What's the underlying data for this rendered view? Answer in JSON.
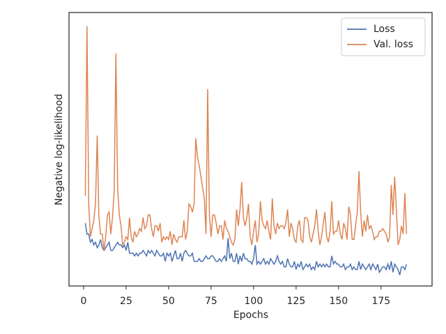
{
  "chart_data": {
    "type": "line",
    "xlabel": "Epochs",
    "ylabel": "Negative log-likelihood",
    "x": [
      1,
      2,
      3,
      4,
      5,
      6,
      7,
      8,
      9,
      10,
      11,
      12,
      13,
      14,
      15,
      16,
      17,
      18,
      19,
      20,
      21,
      22,
      23,
      24,
      25,
      26,
      27,
      28,
      29,
      30,
      31,
      32,
      33,
      34,
      35,
      36,
      37,
      38,
      39,
      40,
      41,
      42,
      43,
      44,
      45,
      46,
      47,
      48,
      49,
      50,
      51,
      52,
      53,
      54,
      55,
      56,
      57,
      58,
      59,
      60,
      61,
      62,
      63,
      64,
      65,
      66,
      67,
      68,
      69,
      70,
      71,
      72,
      73,
      74,
      75,
      76,
      77,
      78,
      79,
      80,
      81,
      82,
      83,
      84,
      85,
      86,
      87,
      88,
      89,
      90,
      91,
      92,
      93,
      94,
      95,
      96,
      97,
      98,
      99,
      100,
      101,
      102,
      103,
      104,
      105,
      106,
      107,
      108,
      109,
      110,
      111,
      112,
      113,
      114,
      115,
      116,
      117,
      118,
      119,
      120,
      121,
      122,
      123,
      124,
      125,
      126,
      127,
      128,
      129,
      130,
      131,
      132,
      133,
      134,
      135,
      136,
      137,
      138,
      139,
      140,
      141,
      142,
      143,
      144,
      145,
      146,
      147,
      148,
      149,
      150,
      151,
      152,
      153,
      154,
      155,
      156,
      157,
      158,
      159,
      160,
      161,
      162,
      163,
      164,
      165,
      166,
      167,
      168,
      169,
      170,
      171,
      172,
      173,
      174,
      175,
      176,
      177,
      178,
      179,
      180,
      181,
      182,
      183,
      184,
      185,
      186,
      187,
      188,
      189,
      190
    ],
    "series": [
      {
        "name": "Loss",
        "color": "#4c72b0",
        "values": [
          23,
          19,
          19,
          16,
          17,
          15,
          16,
          14,
          15,
          17,
          14,
          13,
          14,
          15,
          16,
          13,
          13,
          14,
          15,
          16,
          15,
          15,
          14,
          15,
          13,
          16,
          12,
          12,
          12,
          11,
          12,
          11,
          12,
          12,
          13,
          12,
          11,
          13,
          12,
          13,
          12,
          11,
          13,
          12,
          11,
          11,
          12,
          9,
          12,
          11,
          12,
          9,
          11,
          13,
          10,
          10,
          12,
          9,
          12,
          13,
          12,
          11,
          11,
          12,
          9,
          9,
          9,
          10,
          9,
          9,
          10,
          11,
          10,
          10,
          11,
          11,
          10,
          9,
          9,
          10,
          9,
          10,
          11,
          9,
          17.5,
          10,
          12,
          9,
          9,
          12,
          8,
          11,
          9,
          12,
          10,
          10,
          9,
          9,
          8,
          10,
          15,
          8,
          9,
          8,
          9,
          10,
          8,
          9,
          8,
          10,
          9,
          8,
          9,
          11,
          9,
          8,
          9,
          7,
          7,
          10,
          8,
          7,
          7,
          9,
          6,
          8,
          7,
          9,
          6,
          7,
          8,
          7,
          8,
          6,
          7,
          6,
          9,
          7,
          8,
          7,
          8,
          7,
          8,
          7,
          7,
          11,
          8,
          9,
          8,
          8,
          7,
          7,
          8,
          6,
          7,
          7,
          8,
          6,
          7,
          6,
          6,
          9,
          6,
          8,
          7,
          6,
          7,
          8,
          6,
          8,
          7,
          6,
          8,
          5,
          6,
          7,
          7,
          6,
          8,
          6,
          9,
          5,
          8,
          7,
          6,
          4,
          7,
          7,
          6,
          8
        ]
      },
      {
        "name": "Val. loss",
        "color": "#dd8452",
        "values": [
          33,
          95,
          30,
          18,
          21,
          24,
          30,
          55,
          25,
          19,
          19,
          13,
          18,
          26,
          27,
          19,
          25,
          35,
          85,
          36,
          26,
          22,
          15,
          16,
          18,
          17,
          25,
          18,
          16,
          20,
          18,
          19,
          21,
          20,
          25,
          21,
          22,
          26,
          26,
          21,
          18,
          22,
          22,
          20,
          23,
          16,
          18,
          17,
          18,
          17,
          20,
          15,
          19,
          17,
          16,
          18,
          18,
          18,
          24,
          17,
          20,
          30,
          29,
          27,
          30,
          54,
          47,
          44,
          40,
          36,
          32,
          19,
          72,
          26,
          18,
          26,
          26,
          23,
          19,
          22,
          22,
          17,
          24,
          21,
          20,
          18,
          16,
          15,
          17,
          28,
          22,
          28,
          38,
          25,
          22,
          25,
          30,
          18,
          15,
          20,
          24,
          16,
          19,
          31,
          24,
          22,
          21,
          24,
          20,
          17,
          32,
          22,
          19,
          23,
          21,
          22,
          22,
          21,
          23,
          28,
          18,
          23,
          21,
          17,
          16,
          22,
          24,
          17,
          16,
          25,
          25,
          24,
          18,
          16,
          19,
          22,
          28,
          20,
          15,
          18,
          23,
          27,
          18,
          16,
          20,
          31,
          19,
          20,
          20,
          24,
          19,
          17,
          23,
          21,
          17,
          29,
          26,
          17,
          17,
          22,
          27,
          42,
          27,
          18,
          24,
          20,
          26,
          21,
          22,
          20,
          17,
          18,
          18,
          20,
          20,
          21,
          20,
          19,
          16,
          18,
          37,
          26,
          40,
          28,
          15,
          17,
          22,
          19,
          34,
          19
        ]
      }
    ],
    "xlim": [
      -8.6,
      205
    ],
    "xticks": [
      0,
      25,
      50,
      75,
      100,
      125,
      150,
      175
    ],
    "ylim": [
      0,
      100
    ],
    "legend": "upper right"
  }
}
